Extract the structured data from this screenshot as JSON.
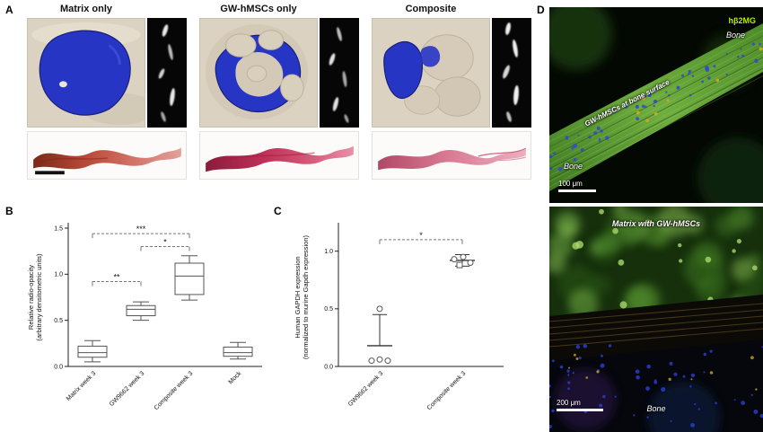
{
  "panels": {
    "a": {
      "label": "A",
      "columns": [
        {
          "title": "Matrix only"
        },
        {
          "title": "GW-hMSCs only"
        },
        {
          "title": "Composite"
        }
      ]
    },
    "b": {
      "label": "B"
    },
    "c": {
      "label": "C"
    },
    "d": {
      "label": "D",
      "top": {
        "marker": "hβ2MG",
        "bone_upper": "Bone",
        "annotation": "GW-hMSCs at bone surface",
        "bone_lower": "Bone",
        "scale": "100 μm"
      },
      "bottom": {
        "title": "Matrix with GW-hMSCs",
        "bone": "Bone",
        "scale": "200 μm"
      }
    }
  },
  "chart_data": [
    {
      "id": "panel-b",
      "type": "box",
      "ylabel_lines": [
        "Relative radio-opacity",
        "(arbitrary densitometric units)"
      ],
      "ylim": [
        0,
        1.5
      ],
      "yticks": [
        0,
        0.5,
        1.0,
        1.5
      ],
      "categories": [
        "Matrix week 3",
        "GW9662 week 3",
        "Composite week 3",
        "Mock"
      ],
      "boxes": [
        {
          "whisker_low": 0.05,
          "q1": 0.1,
          "median": 0.15,
          "q3": 0.22,
          "whisker_high": 0.28
        },
        {
          "whisker_low": 0.5,
          "q1": 0.55,
          "median": 0.62,
          "q3": 0.66,
          "whisker_high": 0.7
        },
        {
          "whisker_low": 0.72,
          "q1": 0.78,
          "median": 0.98,
          "q3": 1.12,
          "whisker_high": 1.2
        },
        {
          "whisker_low": 0.08,
          "q1": 0.11,
          "median": 0.15,
          "q3": 0.21,
          "whisker_high": 0.26
        }
      ],
      "significance": [
        {
          "from": 0,
          "to": 1,
          "label": "**",
          "y": 0.92
        },
        {
          "from": 1,
          "to": 2,
          "label": "*",
          "y": 1.3
        },
        {
          "from": 0,
          "to": 2,
          "label": "***",
          "y": 1.44
        }
      ]
    },
    {
      "id": "panel-c",
      "type": "scatter",
      "ylabel_lines": [
        "Human GAPDH expression",
        "(normalized to murine Gapdh expression)"
      ],
      "ylim": [
        0,
        1.2
      ],
      "yticks": [
        0,
        0.5,
        1.0
      ],
      "categories": [
        "GW9662 week 3",
        "Composite week 3"
      ],
      "series": [
        {
          "category": "GW9662 week 3",
          "mean": 0.18,
          "sd_high": 0.45,
          "points": [
            {
              "v": 0.05,
              "dx": -9
            },
            {
              "v": 0.06,
              "dx": 0
            },
            {
              "v": 0.05,
              "dx": 9
            },
            {
              "v": 0.5,
              "dx": 0
            }
          ]
        },
        {
          "category": "Composite week 3",
          "mean": 0.92,
          "sd_high": 0.97,
          "sd_low": 0.87,
          "points": [
            {
              "v": 0.93,
              "dx": -9
            },
            {
              "v": 0.95,
              "dx": 1
            },
            {
              "v": 0.9,
              "dx": 9
            },
            {
              "v": 0.88,
              "dx": -3,
              "marker": "square"
            }
          ]
        }
      ],
      "significance": [
        {
          "from": 0,
          "to": 1,
          "label": "*",
          "y": 1.1
        }
      ]
    }
  ]
}
